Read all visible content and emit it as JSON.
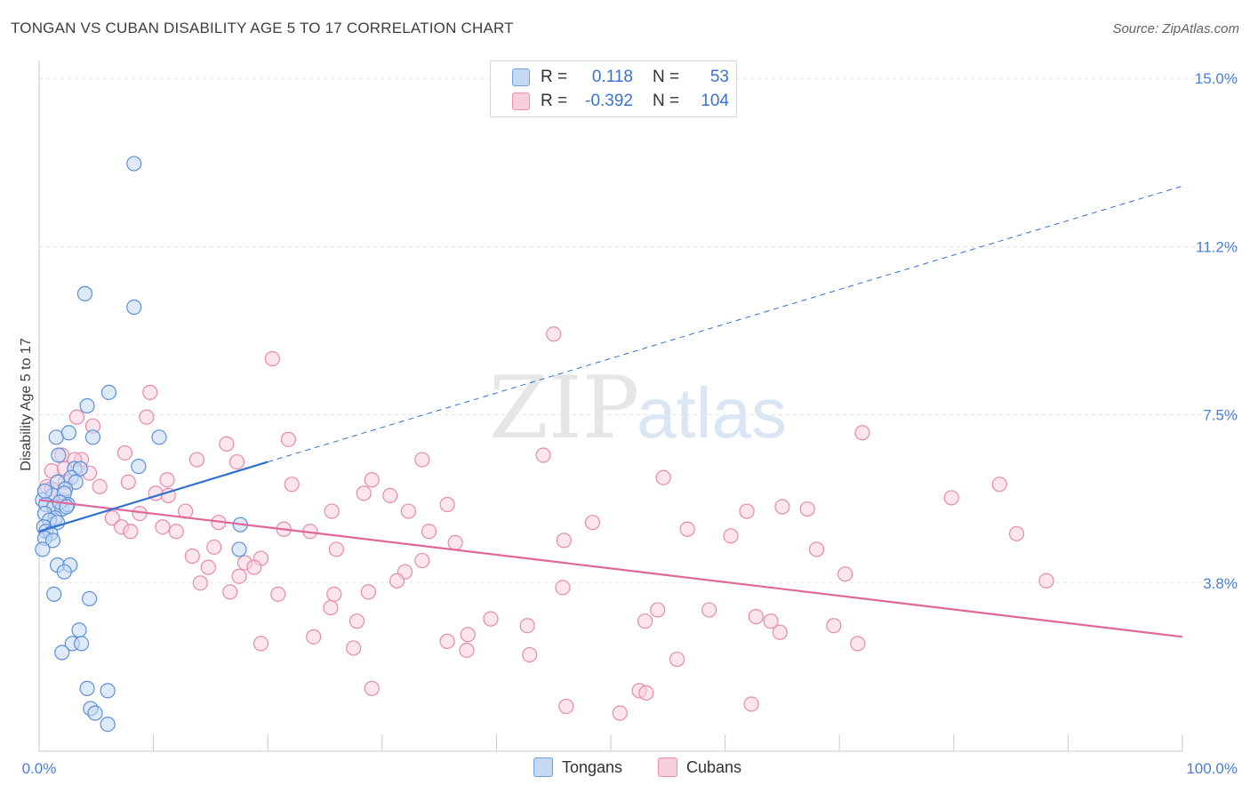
{
  "header": {
    "title": "TONGAN VS CUBAN DISABILITY AGE 5 TO 17 CORRELATION CHART",
    "source": "Source: ZipAtlas.com"
  },
  "legend": {
    "rows": [
      {
        "r_label": "R =",
        "r_value": "0.118",
        "n_label": "N =",
        "n_value": "53"
      },
      {
        "r_label": "R =",
        "r_value": "-0.392",
        "n_label": "N =",
        "n_value": "104"
      }
    ]
  },
  "bottom_legend": {
    "tongans": "Tongans",
    "cubans": "Cubans"
  },
  "watermark": {
    "zip": "ZIP",
    "atlas": "atlas"
  },
  "colors": {
    "tongans_fill": "#c5d9f4",
    "tongans_stroke": "#5b8fd9",
    "tongans_line": "#2f6fd1",
    "cubans_fill": "#f9cfdd",
    "cubans_stroke": "#e58aab",
    "cubans_line": "#e0679a",
    "grid": "#e3e3e3",
    "tick_label": "#4a7fd4"
  },
  "chart_data": {
    "type": "scatter",
    "title": "TONGAN VS CUBAN DISABILITY AGE 5 TO 17 CORRELATION CHART",
    "xlabel": "",
    "ylabel": "Disability Age 5 to 17",
    "x_tick_labels": [
      "0.0%",
      "100.0%"
    ],
    "y_tick_labels": [
      "15.0%",
      "11.2%",
      "7.5%",
      "3.8%"
    ],
    "y_ticks": [
      15.0,
      11.25,
      7.5,
      3.75
    ],
    "xlim": [
      0,
      100
    ],
    "ylim": [
      0,
      15.4
    ],
    "grid": true,
    "legend_position": "top-center",
    "series": [
      {
        "name": "Tongans",
        "R": 0.118,
        "N": 53,
        "trend": {
          "x0": 0,
          "y0": 4.9,
          "x1": 20,
          "y1": 6.45,
          "dashed_to_x": 100,
          "dashed_to_y": 12.6
        },
        "points": [
          [
            8.3,
            13.1
          ],
          [
            4.0,
            10.2
          ],
          [
            8.3,
            9.9
          ],
          [
            6.1,
            8.0
          ],
          [
            4.2,
            7.7
          ],
          [
            10.5,
            7.0
          ],
          [
            4.7,
            7.0
          ],
          [
            1.5,
            7.0
          ],
          [
            2.6,
            7.1
          ],
          [
            1.7,
            6.6
          ],
          [
            8.7,
            6.35
          ],
          [
            3.1,
            6.3
          ],
          [
            3.6,
            6.3
          ],
          [
            2.8,
            6.1
          ],
          [
            1.6,
            6.0
          ],
          [
            3.2,
            6.0
          ],
          [
            0.3,
            5.6
          ],
          [
            1.2,
            5.7
          ],
          [
            2.3,
            5.85
          ],
          [
            2.2,
            5.75
          ],
          [
            0.6,
            5.5
          ],
          [
            1.3,
            5.45
          ],
          [
            2.0,
            5.4
          ],
          [
            2.5,
            5.5
          ],
          [
            0.5,
            5.3
          ],
          [
            1.4,
            5.2
          ],
          [
            0.9,
            5.15
          ],
          [
            1.6,
            5.1
          ],
          [
            0.4,
            5.0
          ],
          [
            0.6,
            4.9
          ],
          [
            1.0,
            4.85
          ],
          [
            17.6,
            5.05
          ],
          [
            0.5,
            4.75
          ],
          [
            1.2,
            4.7
          ],
          [
            0.3,
            4.5
          ],
          [
            17.5,
            4.5
          ],
          [
            1.6,
            4.15
          ],
          [
            2.7,
            4.15
          ],
          [
            2.2,
            4.0
          ],
          [
            1.3,
            3.5
          ],
          [
            4.4,
            3.4
          ],
          [
            3.5,
            2.7
          ],
          [
            2.9,
            2.4
          ],
          [
            3.7,
            2.4
          ],
          [
            2.0,
            2.2
          ],
          [
            4.2,
            1.4
          ],
          [
            6.0,
            1.35
          ],
          [
            4.5,
            0.95
          ],
          [
            4.9,
            0.85
          ],
          [
            6.0,
            0.6
          ],
          [
            0.5,
            5.8
          ],
          [
            1.8,
            5.55
          ],
          [
            2.4,
            5.45
          ]
        ]
      },
      {
        "name": "Cubans",
        "R": -0.392,
        "N": 104,
        "trend": {
          "x0": 0,
          "y0": 5.6,
          "x1": 100,
          "y1": 2.55
        },
        "points": [
          [
            45.0,
            9.3
          ],
          [
            20.4,
            8.75
          ],
          [
            9.7,
            8.0
          ],
          [
            3.3,
            7.45
          ],
          [
            9.4,
            7.45
          ],
          [
            4.7,
            7.25
          ],
          [
            72.0,
            7.1
          ],
          [
            21.8,
            6.95
          ],
          [
            16.4,
            6.85
          ],
          [
            7.5,
            6.65
          ],
          [
            13.8,
            6.5
          ],
          [
            3.7,
            6.5
          ],
          [
            2.0,
            6.6
          ],
          [
            3.1,
            6.5
          ],
          [
            17.3,
            6.45
          ],
          [
            33.5,
            6.5
          ],
          [
            44.1,
            6.6
          ],
          [
            1.1,
            6.25
          ],
          [
            2.2,
            6.3
          ],
          [
            4.4,
            6.2
          ],
          [
            11.2,
            6.05
          ],
          [
            2.3,
            6.0
          ],
          [
            7.8,
            6.0
          ],
          [
            29.1,
            6.05
          ],
          [
            22.1,
            5.95
          ],
          [
            54.6,
            6.1
          ],
          [
            0.7,
            5.9
          ],
          [
            1.1,
            5.85
          ],
          [
            5.3,
            5.9
          ],
          [
            10.2,
            5.75
          ],
          [
            11.3,
            5.7
          ],
          [
            28.4,
            5.75
          ],
          [
            30.7,
            5.7
          ],
          [
            79.8,
            5.65
          ],
          [
            84.0,
            5.95
          ],
          [
            2.1,
            5.6
          ],
          [
            35.7,
            5.5
          ],
          [
            12.8,
            5.35
          ],
          [
            8.8,
            5.3
          ],
          [
            25.6,
            5.35
          ],
          [
            32.3,
            5.35
          ],
          [
            61.9,
            5.35
          ],
          [
            65.0,
            5.45
          ],
          [
            67.2,
            5.4
          ],
          [
            6.4,
            5.2
          ],
          [
            15.7,
            5.1
          ],
          [
            48.4,
            5.1
          ],
          [
            10.8,
            5.0
          ],
          [
            7.2,
            5.0
          ],
          [
            8.0,
            4.9
          ],
          [
            12.0,
            4.9
          ],
          [
            21.4,
            4.95
          ],
          [
            23.7,
            4.9
          ],
          [
            34.1,
            4.9
          ],
          [
            56.7,
            4.95
          ],
          [
            85.5,
            4.85
          ],
          [
            60.5,
            4.8
          ],
          [
            45.9,
            4.7
          ],
          [
            36.4,
            4.65
          ],
          [
            15.3,
            4.55
          ],
          [
            26.0,
            4.5
          ],
          [
            68.0,
            4.5
          ],
          [
            13.4,
            4.35
          ],
          [
            19.4,
            4.3
          ],
          [
            18.0,
            4.2
          ],
          [
            14.8,
            4.1
          ],
          [
            18.8,
            4.1
          ],
          [
            33.5,
            4.25
          ],
          [
            32.0,
            4.0
          ],
          [
            70.5,
            3.95
          ],
          [
            17.5,
            3.9
          ],
          [
            14.1,
            3.75
          ],
          [
            31.3,
            3.8
          ],
          [
            88.1,
            3.8
          ],
          [
            45.8,
            3.65
          ],
          [
            16.7,
            3.55
          ],
          [
            20.9,
            3.5
          ],
          [
            28.8,
            3.55
          ],
          [
            25.8,
            3.5
          ],
          [
            25.5,
            3.2
          ],
          [
            54.1,
            3.15
          ],
          [
            58.6,
            3.15
          ],
          [
            62.7,
            3.0
          ],
          [
            39.5,
            2.95
          ],
          [
            27.8,
            2.9
          ],
          [
            53.0,
            2.9
          ],
          [
            64.0,
            2.9
          ],
          [
            42.7,
            2.8
          ],
          [
            69.5,
            2.8
          ],
          [
            64.8,
            2.65
          ],
          [
            37.5,
            2.6
          ],
          [
            24.0,
            2.55
          ],
          [
            35.7,
            2.45
          ],
          [
            19.4,
            2.4
          ],
          [
            71.6,
            2.4
          ],
          [
            27.5,
            2.3
          ],
          [
            37.4,
            2.25
          ],
          [
            42.9,
            2.15
          ],
          [
            55.8,
            2.05
          ],
          [
            29.1,
            1.4
          ],
          [
            52.5,
            1.35
          ],
          [
            53.1,
            1.3
          ],
          [
            46.1,
            1.0
          ],
          [
            62.3,
            1.05
          ],
          [
            50.8,
            0.85
          ]
        ]
      }
    ]
  }
}
